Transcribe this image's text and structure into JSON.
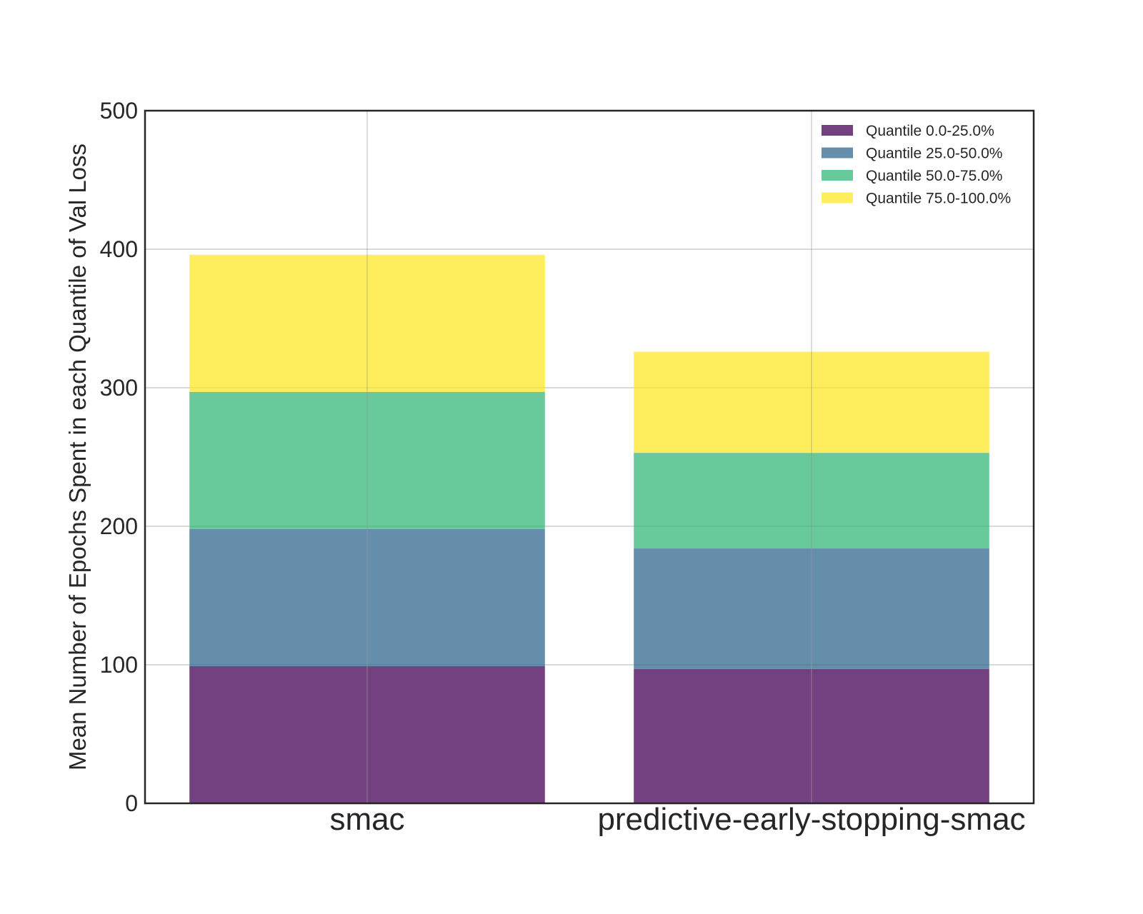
{
  "chart_data": {
    "type": "bar",
    "stacked": true,
    "title": "",
    "xlabel": "",
    "ylabel": "Mean Number of Epochs Spent in each Quantile of Val Loss",
    "categories": [
      "smac",
      "predictive-early-stopping-smac"
    ],
    "ylim": [
      0,
      500
    ],
    "yticks": [
      0,
      100,
      200,
      300,
      400,
      500
    ],
    "grid": true,
    "legend_position": "top-right",
    "series": [
      {
        "name": "Quantile 0.0-25.0%",
        "color": "#440154",
        "values": [
          99,
          97
        ]
      },
      {
        "name": "Quantile 25.0-50.0%",
        "color": "#31688e",
        "values": [
          99,
          87
        ]
      },
      {
        "name": "Quantile 50.0-75.0%",
        "color": "#35b779",
        "values": [
          99,
          69
        ]
      },
      {
        "name": "Quantile 75.0-100.0%",
        "color": "#fde725",
        "values": [
          99,
          73
        ]
      }
    ]
  }
}
